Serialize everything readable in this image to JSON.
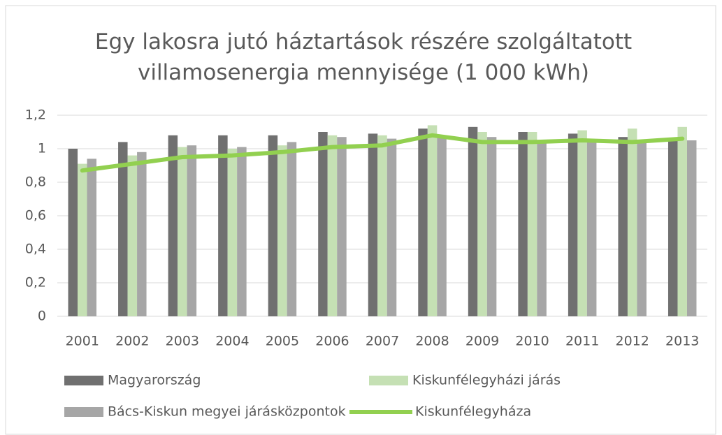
{
  "chart_data": {
    "type": "bar",
    "title": "Egy lakosra jutó háztartások részére szolgáltatott villamosenergia mennyisége (1 000 kWh)",
    "categories": [
      "2001",
      "2002",
      "2003",
      "2004",
      "2005",
      "2006",
      "2007",
      "2008",
      "2009",
      "2010",
      "2011",
      "2012",
      "2013"
    ],
    "series": [
      {
        "name": "Magyarország",
        "color": "#707070",
        "type": "bar",
        "values": [
          1.0,
          1.04,
          1.08,
          1.08,
          1.08,
          1.1,
          1.09,
          1.12,
          1.13,
          1.1,
          1.09,
          1.07,
          1.06
        ]
      },
      {
        "name": "Kiskunfélegyházi járás",
        "color": "#c5e0b4",
        "type": "bar",
        "values": [
          0.91,
          0.96,
          1.01,
          1.0,
          1.02,
          1.08,
          1.08,
          1.14,
          1.1,
          1.1,
          1.11,
          1.12,
          1.13
        ]
      },
      {
        "name": "Bács-Kiskun megyei járásközpontok",
        "color": "#a6a6a6",
        "type": "bar",
        "values": [
          0.94,
          0.98,
          1.02,
          1.01,
          1.04,
          1.07,
          1.06,
          1.08,
          1.07,
          1.05,
          1.05,
          1.05,
          1.05
        ]
      },
      {
        "name": "Kiskunfélegyháza",
        "color": "#92d050",
        "type": "line",
        "values": [
          0.87,
          0.91,
          0.95,
          0.96,
          0.98,
          1.01,
          1.02,
          1.08,
          1.04,
          1.04,
          1.05,
          1.04,
          1.06
        ]
      }
    ],
    "ylim": [
      0,
      1.2
    ],
    "yticks": [
      0,
      {
        "value": 0.2,
        "label": "0,2"
      },
      {
        "value": 0.4,
        "label": "0,4"
      },
      {
        "value": 0.6,
        "label": "0,6"
      },
      {
        "value": 0.8,
        "label": "0,8"
      },
      1,
      {
        "value": 1.2,
        "label": "1,2"
      }
    ],
    "grid": true,
    "legend": "bottom"
  }
}
